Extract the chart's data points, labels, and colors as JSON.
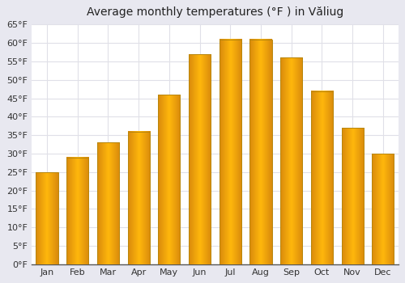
{
  "title": "Average monthly temperatures (°F ) in Văliug",
  "months": [
    "Jan",
    "Feb",
    "Mar",
    "Apr",
    "May",
    "Jun",
    "Jul",
    "Aug",
    "Sep",
    "Oct",
    "Nov",
    "Dec"
  ],
  "values": [
    25,
    29,
    33,
    36,
    46,
    57,
    61,
    61,
    56,
    47,
    37,
    30
  ],
  "ylim": [
    0,
    65
  ],
  "yticks": [
    0,
    5,
    10,
    15,
    20,
    25,
    30,
    35,
    40,
    45,
    50,
    55,
    60,
    65
  ],
  "ytick_labels": [
    "0°F",
    "5°F",
    "10°F",
    "15°F",
    "20°F",
    "25°F",
    "30°F",
    "35°F",
    "40°F",
    "45°F",
    "50°F",
    "55°F",
    "60°F",
    "65°F"
  ],
  "bar_color_main": "#FFC125",
  "bar_color_edge": "#E8960A",
  "bar_edge_color": "#B8860B",
  "plot_bg_color": "#ffffff",
  "fig_bg_color": "#e8e8f0",
  "grid_color": "#e0e0e8",
  "title_fontsize": 10,
  "tick_fontsize": 8,
  "bar_width": 0.72
}
